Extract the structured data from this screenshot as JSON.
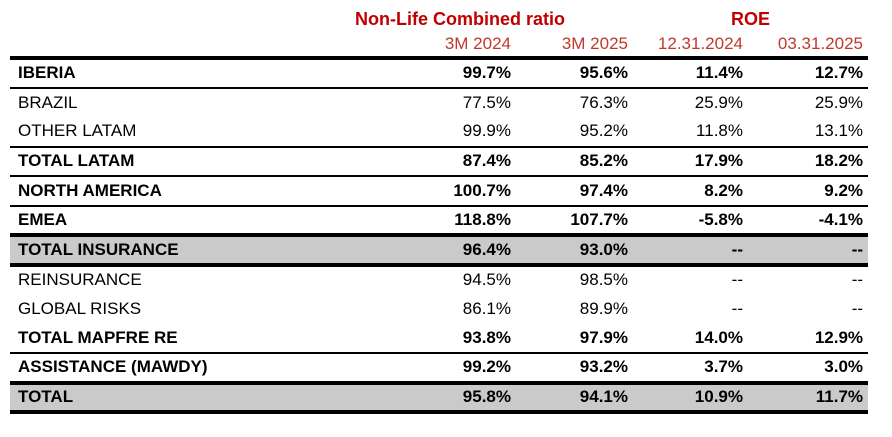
{
  "table": {
    "group_headers": [
      {
        "label": "Non-Life Combined ratio",
        "span": 2
      },
      {
        "label": "ROE",
        "span": 2
      }
    ],
    "column_headers": [
      "3M 2024",
      "3M 2025",
      "12.31.2024",
      "03.31.2025"
    ],
    "rows": [
      {
        "label": "IBERIA",
        "values": [
          "99.7%",
          "95.6%",
          "11.4%",
          "12.7%"
        ],
        "emphasis": "bold",
        "highlight": false,
        "divider": "thin"
      },
      {
        "label": "BRAZIL",
        "values": [
          "77.5%",
          "76.3%",
          "25.9%",
          "25.9%"
        ],
        "emphasis": "normal",
        "highlight": false,
        "divider": "none"
      },
      {
        "label": "OTHER LATAM",
        "values": [
          "99.9%",
          "95.2%",
          "11.8%",
          "13.1%"
        ],
        "emphasis": "normal",
        "highlight": false,
        "divider": "thin"
      },
      {
        "label": "TOTAL LATAM",
        "values": [
          "87.4%",
          "85.2%",
          "17.9%",
          "18.2%"
        ],
        "emphasis": "bold",
        "highlight": false,
        "divider": "thin"
      },
      {
        "label": "NORTH AMERICA",
        "values": [
          "100.7%",
          "97.4%",
          "8.2%",
          "9.2%"
        ],
        "emphasis": "bold",
        "highlight": false,
        "divider": "thin"
      },
      {
        "label": "EMEA",
        "values": [
          "118.8%",
          "107.7%",
          "-5.8%",
          "-4.1%"
        ],
        "emphasis": "bold",
        "highlight": false,
        "divider": "thick"
      },
      {
        "label": "TOTAL INSURANCE",
        "values": [
          "96.4%",
          "93.0%",
          "--",
          "--"
        ],
        "emphasis": "bold",
        "highlight": true,
        "divider": "thick"
      },
      {
        "label": "REINSURANCE",
        "values": [
          "94.5%",
          "98.5%",
          "--",
          "--"
        ],
        "emphasis": "normal",
        "highlight": false,
        "divider": "none"
      },
      {
        "label": "GLOBAL RISKS",
        "values": [
          "86.1%",
          "89.9%",
          "--",
          "--"
        ],
        "emphasis": "normal",
        "highlight": false,
        "divider": "none"
      },
      {
        "label": "TOTAL MAPFRE RE",
        "values": [
          "93.8%",
          "97.9%",
          "14.0%",
          "12.9%"
        ],
        "emphasis": "bold",
        "highlight": false,
        "divider": "thin"
      },
      {
        "label": "ASSISTANCE (MAWDY)",
        "values": [
          "99.2%",
          "93.2%",
          "3.7%",
          "3.0%"
        ],
        "emphasis": "bold",
        "highlight": false,
        "divider": "thick"
      },
      {
        "label": "TOTAL",
        "values": [
          "95.8%",
          "94.1%",
          "10.9%",
          "11.7%"
        ],
        "emphasis": "bold",
        "highlight": true,
        "divider": "thick"
      }
    ]
  },
  "colors": {
    "header_red": "#C00000",
    "subheader_red": "#C0392B",
    "highlight_gray": "#CACACA",
    "border_black": "#000000"
  }
}
